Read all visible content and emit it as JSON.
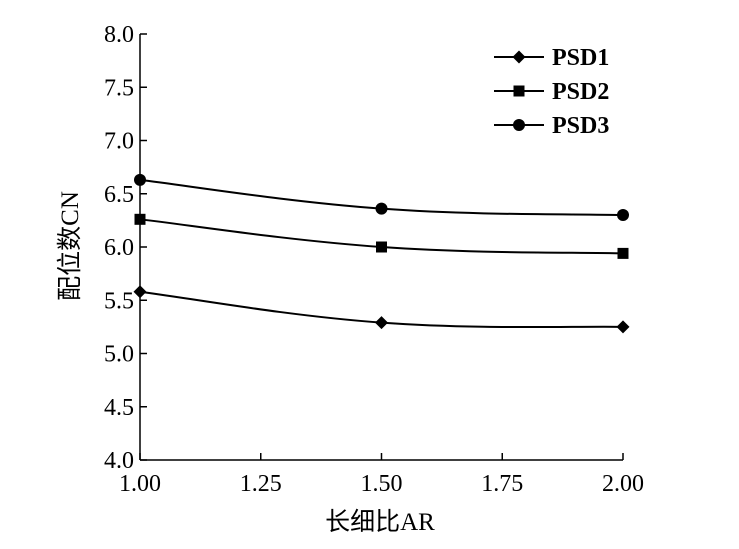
{
  "chart_data": {
    "type": "line",
    "title": "",
    "xlabel": "长细比AR",
    "ylabel": "配位数CN",
    "x": [
      1.0,
      1.5,
      2.0
    ],
    "xlim": [
      1.0,
      2.0
    ],
    "ylim": [
      4.0,
      8.0
    ],
    "xticks": [
      "1.00",
      "1.25",
      "1.50",
      "1.75",
      "2.00"
    ],
    "yticks": [
      "4.0",
      "4.5",
      "5.0",
      "5.5",
      "6.0",
      "6.5",
      "7.0",
      "7.5",
      "8.0"
    ],
    "grid": false,
    "legend_position": "top-right",
    "series": [
      {
        "name": "PSD1",
        "marker": "diamond",
        "values": [
          5.58,
          5.29,
          5.25
        ]
      },
      {
        "name": "PSD2",
        "marker": "square",
        "values": [
          6.26,
          6.0,
          5.94
        ]
      },
      {
        "name": "PSD3",
        "marker": "circle",
        "values": [
          6.63,
          6.36,
          6.3
        ]
      }
    ],
    "colors": {
      "line": "#000000",
      "marker": "#000000"
    }
  }
}
